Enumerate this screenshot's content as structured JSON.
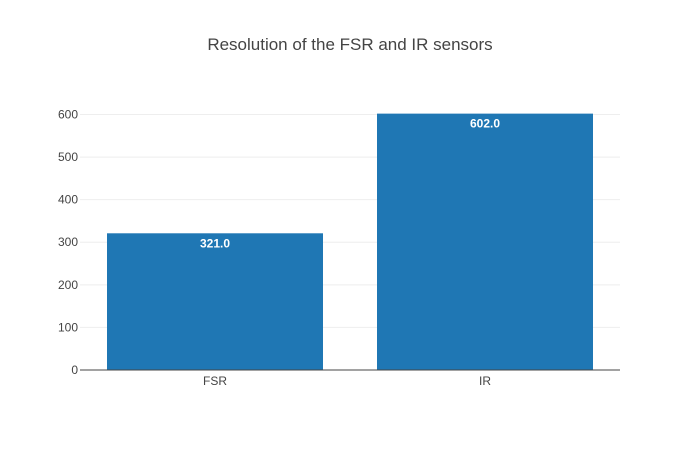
{
  "chart_data": {
    "type": "bar",
    "title": "Resolution of the FSR and IR sensors",
    "categories": [
      "FSR",
      "IR"
    ],
    "values": [
      321.0,
      602.0
    ],
    "value_labels": [
      "321.0",
      "602.0"
    ],
    "xlabel": "",
    "ylabel": "",
    "ylim": [
      0,
      634
    ],
    "yticks": [
      0,
      100,
      200,
      300,
      400,
      500,
      600
    ],
    "grid": true,
    "legend": "none",
    "colors": {
      "bar": "#1f77b4",
      "label": "#ffffff"
    }
  }
}
